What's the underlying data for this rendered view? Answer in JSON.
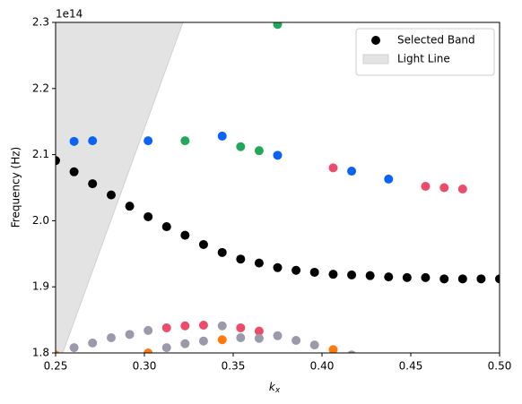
{
  "chart_data": {
    "type": "scatter",
    "x_label": {
      "base": "k",
      "sub": "x"
    },
    "y_label": "Frequency (Hz)",
    "y_offset_label": "1e14",
    "xlim": [
      0.25,
      0.5
    ],
    "xticks": [
      0.25,
      {
        "value": 0.3,
        "label": "0.30"
      },
      0.35,
      {
        "value": 0.4,
        "label": "0.40"
      },
      0.45,
      {
        "value": 0.5,
        "label": "0.50"
      }
    ],
    "ylim": [
      1.8,
      2.3
    ],
    "yticks": [
      1.8,
      1.9,
      {
        "value": 2.0,
        "label": "2.0"
      },
      2.1,
      2.2,
      2.3
    ],
    "legend_position": "upper right",
    "light_line": {
      "name": "Light Line",
      "color": "#e3e3e3",
      "x": [
        0.254,
        0.3217
      ],
      "y": [
        1.8,
        2.3
      ]
    },
    "series": [
      {
        "name": "Selected Band",
        "color": "#000000",
        "x": [
          0.25,
          0.2604,
          0.2708,
          0.2813,
          0.2917,
          0.3021,
          0.3125,
          0.3229,
          0.3333,
          0.3438,
          0.3542,
          0.3646,
          0.375,
          0.3854,
          0.3958,
          0.4063,
          0.4167,
          0.4271,
          0.4375,
          0.4479,
          0.4583,
          0.4688,
          0.4792,
          0.4896,
          0.5
        ],
        "values": [
          2.091,
          2.074,
          2.056,
          2.039,
          2.022,
          2.006,
          1.991,
          1.978,
          1.964,
          1.952,
          1.942,
          1.936,
          1.929,
          1.925,
          1.922,
          1.919,
          1.918,
          1.917,
          1.915,
          1.914,
          1.914,
          1.912,
          1.912,
          1.912,
          1.912
        ]
      },
      {
        "color": "#0b62f5",
        "x": [
          0.2604,
          0.2708,
          0.3021,
          0.3438,
          0.375,
          0.4167,
          0.4375
        ],
        "values": [
          2.12,
          2.121,
          2.121,
          2.128,
          2.099,
          2.075,
          2.063
        ]
      },
      {
        "color": "#22a85a",
        "x": [
          0.3229,
          0.3542,
          0.3646,
          0.375
        ],
        "values": [
          2.121,
          2.112,
          2.106,
          2.297
        ]
      },
      {
        "color": "#ee4a6a",
        "x": [
          0.3125,
          0.3229,
          0.3333,
          0.3542,
          0.3646,
          0.4063,
          0.4583,
          0.4688,
          0.4792
        ],
        "values": [
          1.838,
          1.841,
          1.842,
          1.838,
          1.833,
          2.08,
          2.052,
          2.05,
          2.048
        ]
      },
      {
        "color": "#9a9aaa",
        "x": [
          0.2604,
          0.2708,
          0.2813,
          0.2917,
          0.3021,
          0.3125,
          0.3229,
          0.3333,
          0.3438,
          0.3542,
          0.3646,
          0.375,
          0.3854,
          0.3958,
          0.4167
        ],
        "values": [
          1.808,
          1.815,
          1.823,
          1.828,
          1.834,
          1.808,
          1.814,
          1.818,
          1.841,
          1.823,
          1.822,
          1.826,
          1.819,
          1.812,
          1.797
        ]
      },
      {
        "color": "#ff7a0a",
        "x": [
          0.25,
          0.3021,
          0.3438,
          0.4063
        ],
        "values": [
          1.797,
          1.8,
          1.82,
          1.805
        ]
      }
    ]
  }
}
